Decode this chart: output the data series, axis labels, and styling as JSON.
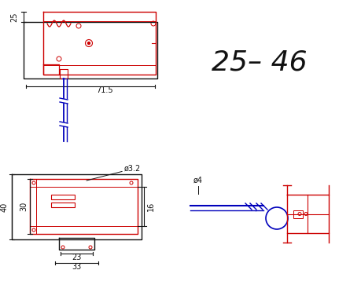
{
  "bg_color": "#ffffff",
  "red": "#cc0000",
  "blue": "#0000bb",
  "black": "#111111",
  "dim_fontsize": 7,
  "title_fontsize": 26
}
